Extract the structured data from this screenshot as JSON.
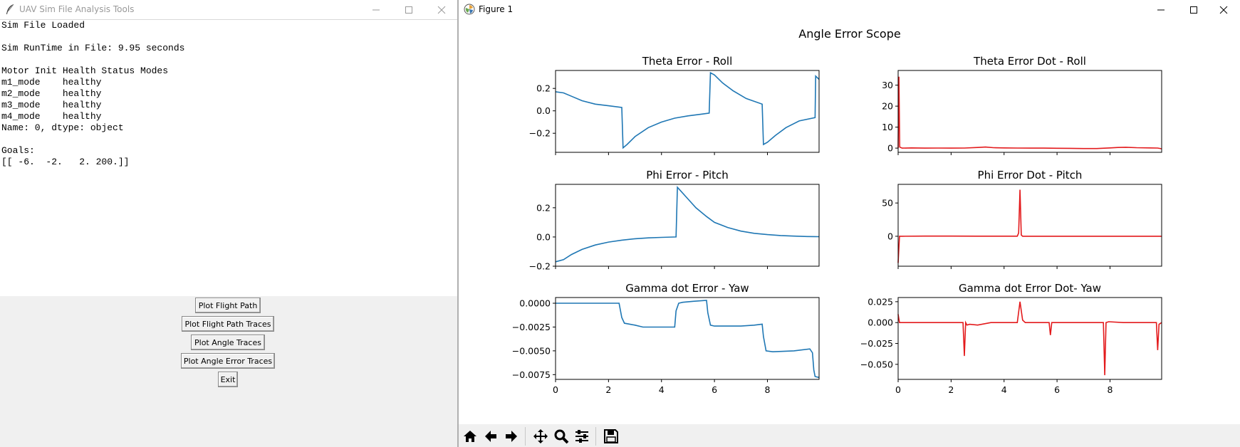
{
  "left_window": {
    "title": "UAV Sim File Analysis Tools",
    "text_lines": [
      "Sim File Loaded",
      "",
      "Sim RunTime in File: 9.95 seconds",
      "",
      "Motor Init Health Status Modes",
      "m1_mode    healthy",
      "m2_mode    healthy",
      "m3_mode    healthy",
      "m4_mode    healthy",
      "Name: 0, dtype: object",
      "",
      "Goals:",
      "[[ -6.  -2.   2. 200.]]"
    ],
    "buttons": [
      {
        "label": "Plot Flight Path"
      },
      {
        "label": "Plot Flight Path Traces"
      },
      {
        "label": "Plot Angle Traces"
      },
      {
        "label": "Plot Angle Error Traces"
      },
      {
        "label": "Exit"
      }
    ]
  },
  "right_window": {
    "title": "Figure 1",
    "toolbar": [
      "home-icon",
      "back-icon",
      "forward-icon",
      "pan-icon",
      "zoom-icon",
      "configure-subplots-icon",
      "save-icon"
    ]
  },
  "chart_data": {
    "suptitle": "Angle Error Scope",
    "colors": {
      "blue": "#1f77b4",
      "red": "#e31a1c"
    },
    "subplots": [
      {
        "title": "Theta Error - Roll",
        "type": "line",
        "color": "#1f77b4",
        "xlim": [
          0,
          9.95
        ],
        "ylim": [
          -0.37,
          0.36
        ],
        "yticks": [
          0.2,
          0.0,
          -0.2
        ],
        "ytick_labels": [
          "0.2",
          "0.0",
          "−0.2"
        ],
        "xticks": [
          0,
          2,
          4,
          6,
          8
        ],
        "xtick_labels": [],
        "x": [
          0,
          0.3,
          0.6,
          1.0,
          1.5,
          2.0,
          2.5,
          2.55,
          2.7,
          3.0,
          3.5,
          4.0,
          4.5,
          5.0,
          5.5,
          5.8,
          5.85,
          6.0,
          6.3,
          6.7,
          7.2,
          7.8,
          7.85,
          8.0,
          8.3,
          8.7,
          9.2,
          9.8,
          9.82,
          9.95
        ],
        "y": [
          0.17,
          0.16,
          0.13,
          0.09,
          0.06,
          0.045,
          0.03,
          -0.33,
          -0.3,
          -0.23,
          -0.15,
          -0.1,
          -0.065,
          -0.045,
          -0.03,
          -0.02,
          0.34,
          0.32,
          0.25,
          0.18,
          0.11,
          0.06,
          -0.3,
          -0.28,
          -0.22,
          -0.15,
          -0.09,
          -0.06,
          0.31,
          0.28
        ]
      },
      {
        "title": "Theta Error Dot - Roll",
        "type": "line",
        "color": "#e31a1c",
        "xlim": [
          0,
          9.95
        ],
        "ylim": [
          -2,
          37
        ],
        "yticks": [
          30,
          20,
          10,
          0
        ],
        "ytick_labels": [
          "30",
          "20",
          "10",
          "0"
        ],
        "xticks": [
          0,
          2,
          4,
          6,
          8
        ],
        "xtick_labels": [],
        "x": [
          0,
          0.03,
          0.06,
          0.15,
          0.5,
          1.0,
          1.5,
          2.0,
          2.5,
          3.0,
          3.3,
          3.6,
          4.0,
          4.5,
          5.0,
          5.5,
          6.0,
          6.5,
          7.0,
          7.5,
          8.0,
          8.3,
          8.6,
          9.0,
          9.5,
          9.8,
          9.95
        ],
        "y": [
          0,
          34,
          0.5,
          0,
          0.1,
          0,
          0.05,
          0,
          0.05,
          0.3,
          0.5,
          0.2,
          0.1,
          0.05,
          0,
          0,
          -0.05,
          -0.1,
          -0.2,
          -0.2,
          0.1,
          0.3,
          0.4,
          0.2,
          0.1,
          0.05,
          -0.3
        ]
      },
      {
        "title": "Phi Error - Pitch",
        "type": "line",
        "color": "#1f77b4",
        "xlim": [
          0,
          9.95
        ],
        "ylim": [
          -0.2,
          0.36
        ],
        "yticks": [
          0.2,
          0.0,
          -0.2
        ],
        "ytick_labels": [
          "0.2",
          "0.0",
          "−0.2"
        ],
        "xticks": [
          0,
          2,
          4,
          6,
          8
        ],
        "xtick_labels": [],
        "x": [
          0,
          0.3,
          0.6,
          1.0,
          1.5,
          2.0,
          2.5,
          3.0,
          3.5,
          4.0,
          4.55,
          4.6,
          4.7,
          5.0,
          5.3,
          5.7,
          6.0,
          6.5,
          7.0,
          7.5,
          8.0,
          8.5,
          9.0,
          9.5,
          9.95
        ],
        "y": [
          -0.17,
          -0.155,
          -0.12,
          -0.085,
          -0.055,
          -0.035,
          -0.022,
          -0.012,
          -0.006,
          -0.003,
          0.0,
          0.34,
          0.32,
          0.26,
          0.2,
          0.14,
          0.1,
          0.065,
          0.04,
          0.025,
          0.016,
          0.01,
          0.006,
          0.003,
          0.002
        ]
      },
      {
        "title": "Phi Error Dot - Pitch",
        "type": "line",
        "color": "#e31a1c",
        "xlim": [
          0,
          9.95
        ],
        "ylim": [
          -45,
          78
        ],
        "yticks": [
          50,
          0
        ],
        "ytick_labels": [
          "50",
          "0"
        ],
        "xticks": [
          0,
          2,
          4,
          6,
          8
        ],
        "xtick_labels": [],
        "x": [
          0,
          0.05,
          0.15,
          1.0,
          2.0,
          3.0,
          4.0,
          4.5,
          4.55,
          4.6,
          4.65,
          4.7,
          5.0,
          6.0,
          7.0,
          8.0,
          9.0,
          9.95
        ],
        "y": [
          -40,
          0,
          0,
          0.2,
          0.2,
          0.1,
          0.1,
          0.1,
          5,
          70,
          2,
          0,
          0,
          0,
          0,
          0,
          0,
          0
        ]
      },
      {
        "title": "Gamma dot Error - Yaw",
        "type": "line",
        "color": "#1f77b4",
        "xlim": [
          0,
          9.95
        ],
        "ylim": [
          -0.008,
          0.0006
        ],
        "yticks": [
          0.0,
          -0.0025,
          -0.005,
          -0.0075
        ],
        "ytick_labels": [
          "0.0000",
          "−0.0025",
          "−0.0050",
          "−0.0075"
        ],
        "xticks": [
          0,
          2,
          4,
          6,
          8
        ],
        "xtick_labels": [
          "0",
          "2",
          "4",
          "6",
          "8"
        ],
        "x": [
          0,
          2.4,
          2.5,
          2.6,
          2.8,
          3.0,
          3.3,
          4.0,
          4.5,
          4.55,
          4.65,
          4.8,
          5.2,
          5.7,
          5.75,
          5.85,
          6.0,
          6.5,
          7.0,
          7.5,
          7.8,
          7.85,
          7.95,
          8.2,
          9.0,
          9.6,
          9.7,
          9.75,
          9.8,
          9.95
        ],
        "y": [
          0.0,
          0.0,
          -0.0015,
          -0.0021,
          -0.0022,
          -0.0023,
          -0.0025,
          -0.0025,
          -0.0025,
          -0.0008,
          0.0,
          0.0001,
          0.0002,
          0.0003,
          -0.001,
          -0.0023,
          -0.0024,
          -0.0024,
          -0.0024,
          -0.0023,
          -0.0022,
          -0.0035,
          -0.005,
          -0.0051,
          -0.005,
          -0.0048,
          -0.0052,
          -0.007,
          -0.0077,
          -0.0078
        ]
      },
      {
        "title": "Gamma dot Error Dot- Yaw",
        "type": "line",
        "color": "#e31a1c",
        "xlim": [
          0,
          9.95
        ],
        "ylim": [
          -0.068,
          0.03
        ],
        "yticks": [
          0.025,
          0.0,
          -0.025,
          -0.05
        ],
        "ytick_labels": [
          "0.025",
          "0.000",
          "−0.025",
          "−0.050"
        ],
        "xticks": [
          0,
          2,
          4,
          6,
          8
        ],
        "xtick_labels": [
          "0",
          "2",
          "4",
          "6",
          "8"
        ],
        "x": [
          0,
          0.05,
          0.12,
          2.45,
          2.5,
          2.55,
          2.6,
          2.7,
          3.0,
          3.5,
          4.5,
          4.6,
          4.7,
          4.8,
          5.7,
          5.75,
          5.8,
          5.9,
          7.75,
          7.8,
          7.85,
          7.95,
          8.5,
          9.5,
          9.75,
          9.8,
          9.85,
          9.95
        ],
        "y": [
          0.01,
          0.0,
          0.0,
          0.0,
          -0.04,
          0.0,
          -0.003,
          -0.002,
          -0.003,
          0.0,
          0.0,
          0.025,
          0.003,
          0.0,
          0.0,
          -0.015,
          0.0,
          0.0,
          0.0,
          -0.063,
          0.0,
          0.001,
          0.0,
          0.0,
          0.0,
          -0.033,
          -0.002,
          0.0
        ]
      }
    ]
  }
}
